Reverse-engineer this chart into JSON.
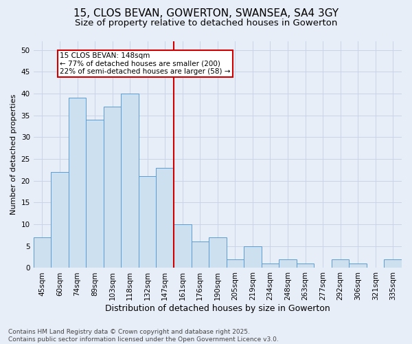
{
  "title": "15, CLOS BEVAN, GOWERTON, SWANSEA, SA4 3GY",
  "subtitle": "Size of property relative to detached houses in Gowerton",
  "xlabel": "Distribution of detached houses by size in Gowerton",
  "ylabel": "Number of detached properties",
  "categories": [
    "45sqm",
    "60sqm",
    "74sqm",
    "89sqm",
    "103sqm",
    "118sqm",
    "132sqm",
    "147sqm",
    "161sqm",
    "176sqm",
    "190sqm",
    "205sqm",
    "219sqm",
    "234sqm",
    "248sqm",
    "263sqm",
    "277sqm",
    "292sqm",
    "306sqm",
    "321sqm",
    "335sqm"
  ],
  "values": [
    7,
    22,
    39,
    34,
    37,
    40,
    21,
    23,
    10,
    6,
    7,
    2,
    5,
    1,
    2,
    1,
    0,
    2,
    1,
    0,
    2
  ],
  "bar_color": "#cce0f0",
  "bar_edge_color": "#5b9bd5",
  "subject_line_color": "#cc0000",
  "subject_label": "15 CLOS BEVAN: 148sqm",
  "annotation_line1": "← 77% of detached houses are smaller (200)",
  "annotation_line2": "22% of semi-detached houses are larger (58) →",
  "annotation_box_color": "#ffffff",
  "annotation_box_edge_color": "#cc0000",
  "ylim": [
    0,
    52
  ],
  "yticks": [
    0,
    5,
    10,
    15,
    20,
    25,
    30,
    35,
    40,
    45,
    50
  ],
  "grid_color": "#c8d4e8",
  "background_color": "#e8eef8",
  "footer": "Contains HM Land Registry data © Crown copyright and database right 2025.\nContains public sector information licensed under the Open Government Licence v3.0.",
  "title_fontsize": 11,
  "subtitle_fontsize": 9.5,
  "xlabel_fontsize": 9,
  "ylabel_fontsize": 8,
  "tick_fontsize": 7.5,
  "annotation_fontsize": 7.5,
  "footer_fontsize": 6.5,
  "subject_bar_index": 7
}
